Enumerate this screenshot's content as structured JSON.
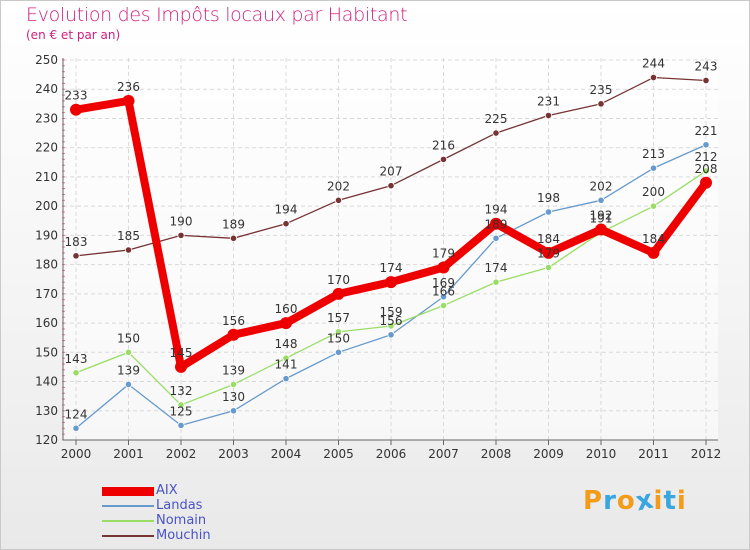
{
  "title": "Evolution des Impôts locaux par Habitant",
  "subtitle": "(en € et par an)",
  "logo": {
    "text": "Proxiti",
    "letters": [
      "P",
      "r",
      "o",
      "x",
      "i",
      "t",
      "i"
    ],
    "colors": [
      "#f39c1a",
      "#3aa6e0",
      "#f39c1a",
      "#3aa6e0",
      "#f39c1a",
      "#3aa6e0",
      "#f39c1a"
    ]
  },
  "chart_data": {
    "type": "line",
    "title": "Evolution des Impôts locaux par Habitant",
    "subtitle": "(en € et par an)",
    "xlabel": "",
    "ylabel": "",
    "categories": [
      "2000",
      "2001",
      "2002",
      "2003",
      "2004",
      "2005",
      "2006",
      "2007",
      "2008",
      "2009",
      "2010",
      "2011",
      "2012"
    ],
    "ylim": [
      120,
      250
    ],
    "yticks": [
      120,
      130,
      140,
      150,
      160,
      170,
      180,
      190,
      200,
      210,
      220,
      230,
      240,
      250
    ],
    "series": [
      {
        "name": "AIX",
        "color": "#ee0000",
        "values": [
          233,
          236,
          145,
          156,
          160,
          170,
          174,
          179,
          194,
          184,
          192,
          184,
          208
        ]
      },
      {
        "name": "Landas",
        "color": "#6699cc",
        "values": [
          124,
          139,
          125,
          130,
          141,
          150,
          156,
          169,
          189,
          198,
          202,
          213,
          221
        ]
      },
      {
        "name": "Nomain",
        "color": "#99dd66",
        "values": [
          143,
          150,
          132,
          139,
          148,
          157,
          159,
          166,
          174,
          179,
          191,
          200,
          212
        ]
      },
      {
        "name": "Mouchin",
        "color": "#773333",
        "values": [
          183,
          185,
          190,
          189,
          194,
          202,
          207,
          216,
          225,
          231,
          235,
          244,
          243
        ]
      }
    ]
  }
}
